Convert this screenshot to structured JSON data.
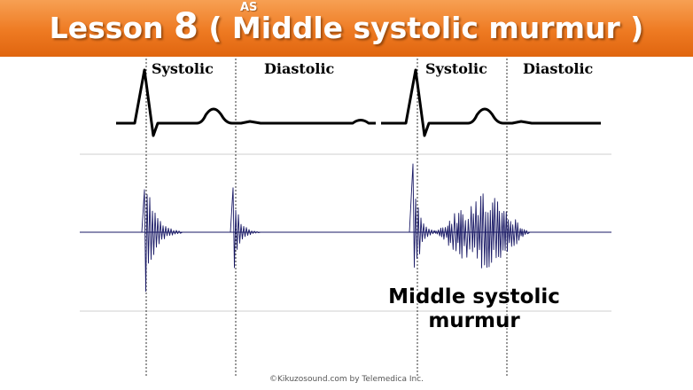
{
  "header": {
    "prefix": "Lesson ",
    "number": "8",
    "title": " ( Middle systolic murmur )",
    "superscript": "AS",
    "colors": {
      "banner": "#ee7a22",
      "text": "#ffffff"
    }
  },
  "phases": {
    "systolic_1": "Systolic",
    "diastolic_1": "Diastolic",
    "systolic_2": "Systolic",
    "diastolic_2": "Diastolic"
  },
  "waveform": {
    "ecg_trace": "ECG",
    "phonocardiogram": "phonocardiogram",
    "color": "#1a1a66"
  },
  "annotation": {
    "line1": "Middle systolic",
    "line2": "murmur"
  },
  "footer": {
    "copyright": "©Kikuzosound.com by Telemedica Inc."
  }
}
